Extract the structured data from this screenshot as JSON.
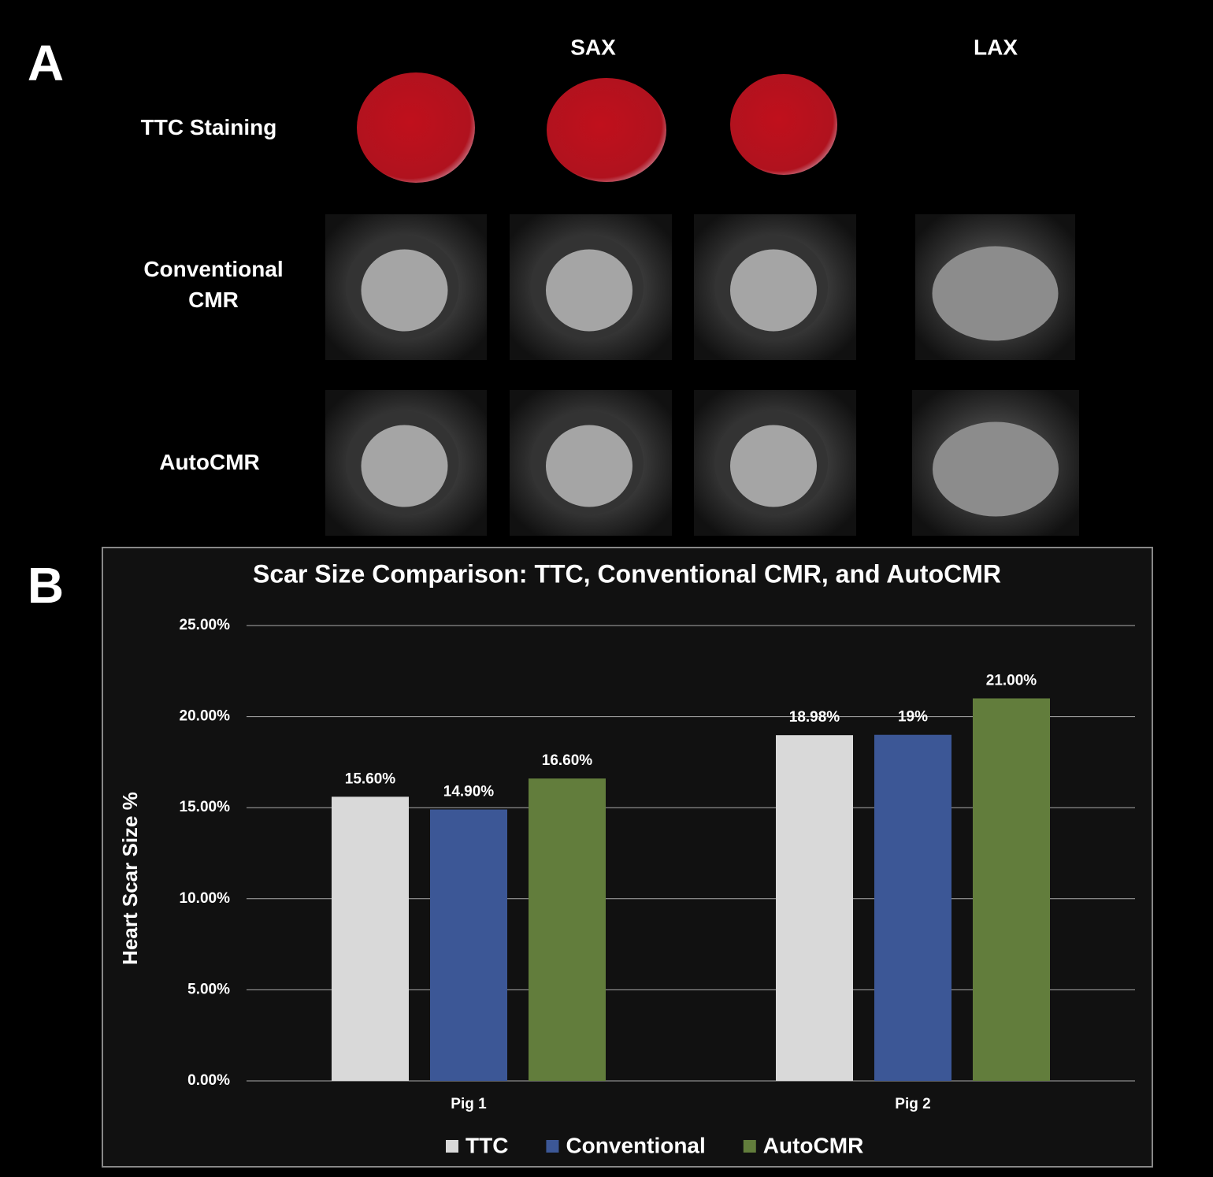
{
  "panel_a": {
    "label": "A",
    "column_headers": [
      "SAX",
      "LAX"
    ],
    "row_labels": [
      "TTC Staining",
      "Conventional CMR",
      "AutoCMR"
    ]
  },
  "panel_b": {
    "label": "B"
  },
  "chart_data": {
    "type": "bar",
    "title": "Scar Size Comparison: TTC, Conventional CMR, and AutoCMR",
    "y_label": "Heart Scar Size %",
    "categories": [
      "Pig 1",
      "Pig 2"
    ],
    "series": [
      {
        "name": "TTC",
        "color": "#d9d9d9",
        "values": [
          15.6,
          18.98
        ],
        "value_labels": [
          "15.60%",
          "18.98%"
        ]
      },
      {
        "name": "Conventional",
        "color": "#3c5796",
        "values": [
          14.9,
          19
        ],
        "value_labels": [
          "14.90%",
          "19%"
        ]
      },
      {
        "name": "AutoCMR",
        "color": "#627d3c",
        "values": [
          16.6,
          21
        ],
        "value_labels": [
          "16.60%",
          "21.00%"
        ]
      }
    ],
    "ylim": [
      0,
      25
    ],
    "yticks": [
      {
        "value": 0,
        "label": "0.00%"
      },
      {
        "value": 5,
        "label": "5.00%"
      },
      {
        "value": 10,
        "label": "10.00%"
      },
      {
        "value": 15,
        "label": "15.00%"
      },
      {
        "value": 20,
        "label": "20.00%"
      },
      {
        "value": 25,
        "label": "25.00%"
      }
    ],
    "grid": true,
    "legend": "bottom"
  }
}
